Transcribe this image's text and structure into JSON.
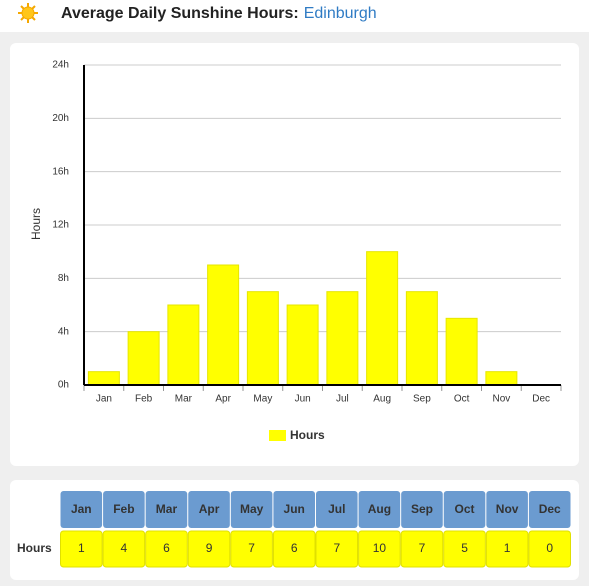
{
  "chart_data": {
    "type": "bar",
    "title": "Average Daily Sunshine Hours:",
    "location": "Edinburgh",
    "y_label": "Hours",
    "categories": [
      "Jan",
      "Feb",
      "Mar",
      "Apr",
      "May",
      "Jun",
      "Jul",
      "Aug",
      "Sep",
      "Oct",
      "Nov",
      "Dec"
    ],
    "series": [
      {
        "name": "Hours",
        "color": "#ffff00",
        "values": [
          1,
          4,
          6,
          9,
          7,
          6,
          7,
          10,
          7,
          5,
          1,
          0
        ]
      }
    ],
    "ylim": [
      0,
      24
    ],
    "yticks": [
      {
        "value": 0,
        "label": "0h"
      },
      {
        "value": 4,
        "label": "4h"
      },
      {
        "value": 8,
        "label": "8h"
      },
      {
        "value": 12,
        "label": "12h"
      },
      {
        "value": 16,
        "label": "16h"
      },
      {
        "value": 20,
        "label": "20h"
      },
      {
        "value": 24,
        "label": "24h"
      }
    ],
    "grid": true,
    "legend": "bottom"
  }
}
